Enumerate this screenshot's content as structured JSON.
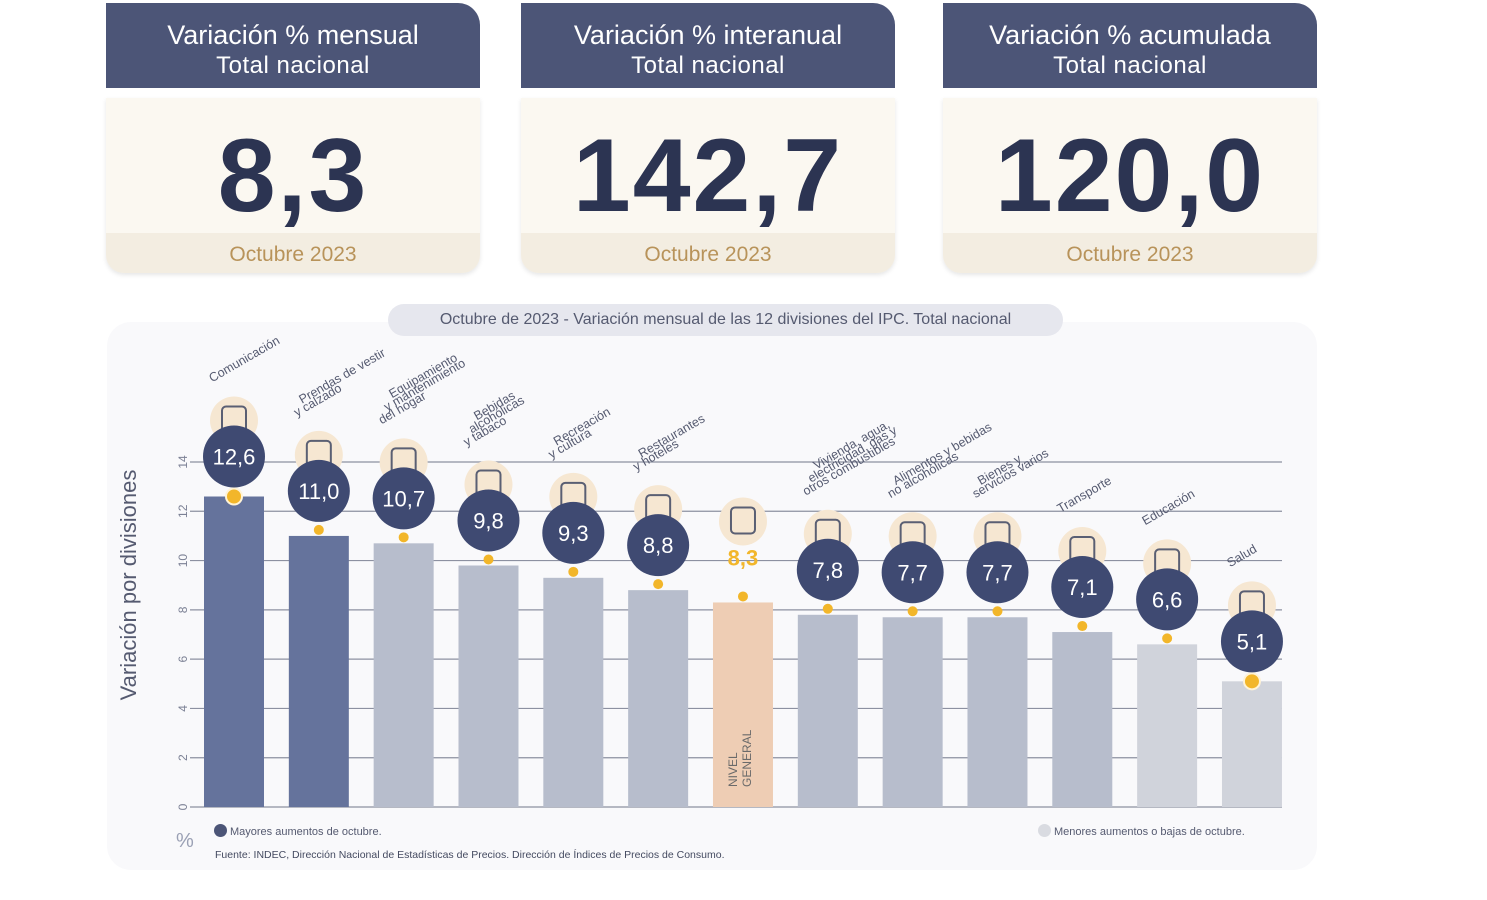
{
  "cards": [
    {
      "title": "Variación % mensual",
      "subtitle": "Total nacional",
      "value": "8,3",
      "date": "Octubre 2023"
    },
    {
      "title": "Variación % interanual",
      "subtitle": "Total nacional",
      "value": "142,7",
      "date": "Octubre 2023"
    },
    {
      "title": "Variación % acumulada",
      "subtitle": "Total nacional",
      "value": "120,0",
      "date": "Octubre 2023"
    }
  ],
  "colors": {
    "card_header": "#4c5577",
    "bar_major": "#65739c",
    "bar_mid": "#b7bdcc",
    "bar_minor": "#d0d3db",
    "bar_general": "#eecdb4",
    "dot": "#f2b62a",
    "label_circle": "#3f4a72"
  },
  "chart_data": {
    "type": "bar",
    "title": "Octubre de 2023 - Variación mensual de las 12 divisiones del IPC. Total nacional",
    "ylabel": "Variación por divisiones",
    "unit_label": "%",
    "ylim": [
      0,
      14
    ],
    "yticks": [
      0,
      2,
      4,
      6,
      8,
      10,
      12,
      14
    ],
    "grid": true,
    "categories": [
      [
        "Comunicación"
      ],
      [
        "Prendas de vestir",
        "y calzado"
      ],
      [
        "Equipamiento",
        "y mantenimiento",
        "del hogar"
      ],
      [
        "Bebidas",
        "alcohólicas",
        "y tabaco"
      ],
      [
        "Recreación",
        "y cultura"
      ],
      [
        "Restaurantes",
        "y hoteles"
      ],
      [],
      [
        "Vivienda, agua,",
        "electricidad, gas y",
        "otros combustibles"
      ],
      [
        "Alimentos y bebidas",
        "no alcohólicas"
      ],
      [
        "Bienes y",
        "servicios varios"
      ],
      [
        "Transporte"
      ],
      [
        "Educación"
      ],
      [
        "Salud"
      ]
    ],
    "values": [
      12.6,
      11.0,
      10.7,
      9.8,
      9.3,
      8.8,
      8.3,
      7.8,
      7.7,
      7.7,
      7.1,
      6.6,
      5.1
    ],
    "value_labels": [
      "12,6",
      "11,0",
      "10,7",
      "9,8",
      "9,3",
      "8,8",
      "8,3",
      "7,8",
      "7,7",
      "7,7",
      "7,1",
      "6,6",
      "5,1"
    ],
    "groups": [
      "major",
      "major",
      "mid",
      "mid",
      "mid",
      "mid",
      "general",
      "mid",
      "mid",
      "mid",
      "mid",
      "minor",
      "minor"
    ],
    "icons": [
      "phone-icon",
      "tshirt-icon",
      "washing-machine-icon",
      "bottle-icon",
      "umbrella-icon",
      "cutlery-icon",
      "basket-icon",
      "lightbulb-icon",
      "chicken-icon",
      "scissors-icon",
      "car-icon",
      "book-icon",
      "medical-cross-icon"
    ],
    "general_bar_label": [
      "NIVEL",
      "GENERAL"
    ],
    "legend": {
      "major": "Mayores aumentos de octubre.",
      "minor": "Menores aumentos o bajas de octubre."
    },
    "source": "Fuente: INDEC, Dirección Nacional de Estadísticas de Precios. Dirección de Índices de Precios de Consumo."
  }
}
